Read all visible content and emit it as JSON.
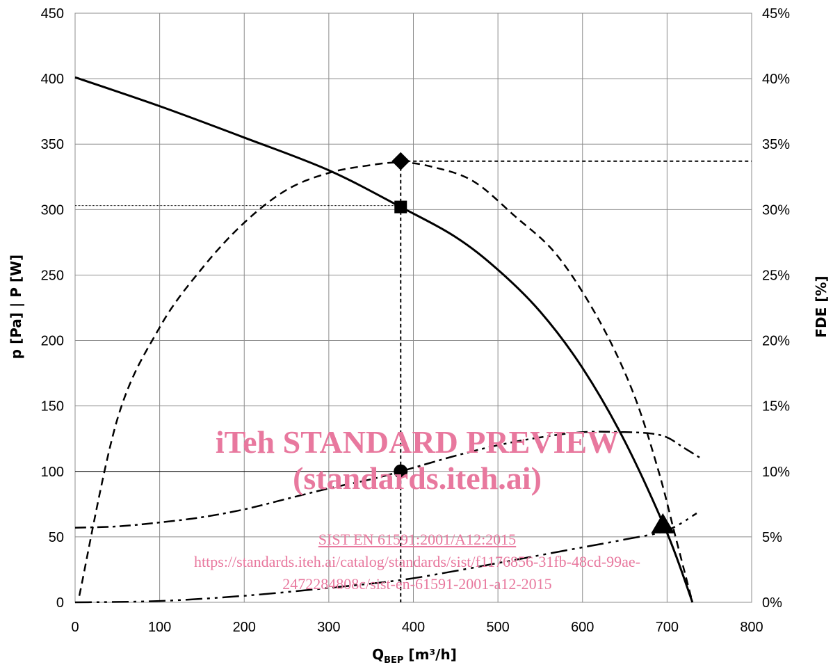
{
  "chart_data": {
    "type": "line",
    "xlabel_main": "Q",
    "xlabel_sub": "BEP",
    "xlabel_unit": " [m³/h]",
    "ylabel_left": "p  [Pa] | P [W]",
    "ylabel_right": "FDE [%]",
    "xlim": [
      0,
      800
    ],
    "ylim_left": [
      0,
      450
    ],
    "ylim_right": [
      0,
      45
    ],
    "x_ticks": [
      "0",
      "100",
      "200",
      "300",
      "400",
      "500",
      "600",
      "700",
      "800"
    ],
    "y_left_ticks": [
      "0",
      "50",
      "100",
      "150",
      "200",
      "250",
      "300",
      "350",
      "400",
      "450"
    ],
    "y_right_ticks": [
      "0%",
      "5%",
      "10%",
      "15%",
      "20%",
      "25%",
      "30%",
      "35%",
      "40%",
      "45%"
    ],
    "grid": true,
    "series": [
      {
        "axis": "left",
        "style": "solid",
        "x": [
          0,
          100,
          200,
          300,
          385,
          450,
          500,
          550,
          600,
          650,
          700,
          730
        ],
        "y": [
          401,
          379,
          355,
          330,
          302,
          279,
          254,
          222,
          179,
          123,
          53,
          0
        ]
      },
      {
        "axis": "right",
        "style": "dashed",
        "x": [
          5,
          50,
          100,
          150,
          200,
          250,
          300,
          350,
          385,
          420,
          470,
          520,
          570,
          620,
          660,
          690,
          710,
          730
        ],
        "y": [
          0.5,
          14,
          21,
          25.5,
          29,
          31.5,
          32.8,
          33.4,
          33.6,
          33.3,
          32.2,
          29.5,
          26.5,
          21.5,
          16,
          10,
          5,
          0
        ]
      },
      {
        "axis": "left",
        "style": "dash-dot",
        "x": [
          0,
          50,
          100,
          150,
          200,
          250,
          300,
          350,
          385,
          450,
          500,
          550,
          600,
          650,
          680,
          700,
          720,
          740
        ],
        "y": [
          57,
          58,
          61,
          65,
          71,
          79,
          87,
          94,
          100,
          112,
          120,
          126,
          130,
          130,
          129,
          126,
          118,
          110
        ]
      },
      {
        "axis": "left",
        "style": "dash-dot-dot",
        "x": [
          0,
          100,
          200,
          300,
          385,
          450,
          500,
          550,
          600,
          650,
          700,
          735
        ],
        "y": [
          0,
          1,
          5,
          11,
          17,
          24,
          30,
          36,
          42,
          48,
          55,
          68
        ]
      }
    ],
    "markers": [
      {
        "shape": "diamond",
        "axis": "right",
        "x": 385,
        "y": 33.7
      },
      {
        "shape": "square",
        "axis": "left",
        "x": 385,
        "y": 302
      },
      {
        "shape": "circle",
        "axis": "left",
        "x": 385,
        "y": 100
      },
      {
        "shape": "triangle",
        "axis": "left",
        "x": 695,
        "y": 58
      }
    ],
    "reference_lines": {
      "x_bep": 385,
      "fde_peak_right": 33.7,
      "p_bep": 302,
      "power_bep": 100
    }
  },
  "watermark": {
    "title": "iTeh STANDARD PREVIEW",
    "subtitle": "(standards.iteh.ai)",
    "line1": "SIST EN 61591:2001/A12:2015",
    "line2": "https://standards.iteh.ai/catalog/standards/sist/f1176856-31fb-48cd-99ae-",
    "line3": "2472284808c/sist-en-61591-2001-a12-2015"
  }
}
